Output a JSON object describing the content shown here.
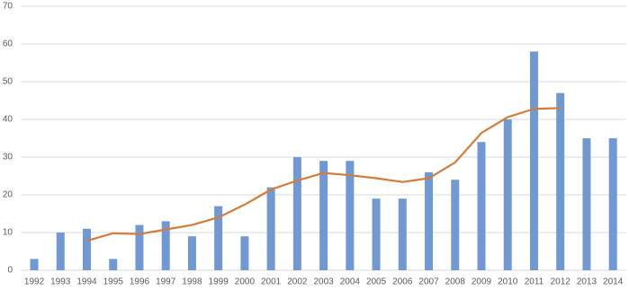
{
  "chart_data": {
    "type": "bar",
    "categories": [
      "1992",
      "1993",
      "1994",
      "1995",
      "1996",
      "1997",
      "1998",
      "1999",
      "2000",
      "2001",
      "2002",
      "2003",
      "2004",
      "2005",
      "2006",
      "2007",
      "2008",
      "2009",
      "2010",
      "2011",
      "2012",
      "2013",
      "2014"
    ],
    "series": [
      {
        "type": "bar",
        "color": "#7099d3",
        "values": [
          3,
          10,
          11,
          3,
          12,
          13,
          9,
          17,
          9,
          22,
          30,
          29,
          29,
          19,
          19,
          26,
          24,
          34,
          40,
          58,
          47,
          35,
          35
        ]
      },
      {
        "type": "line",
        "color": "#d27c3c",
        "values": [
          null,
          null,
          7.8,
          9.8,
          9.6,
          10.8,
          12,
          14,
          17.4,
          21.4,
          23.8,
          25.8,
          25.2,
          24.4,
          23.4,
          24.4,
          28.6,
          36.4,
          40.6,
          42.8,
          43,
          null,
          null
        ]
      }
    ],
    "ylim": [
      0,
      70
    ],
    "yticks": [
      0,
      10,
      20,
      30,
      40,
      50,
      60,
      70
    ],
    "grid": true
  }
}
